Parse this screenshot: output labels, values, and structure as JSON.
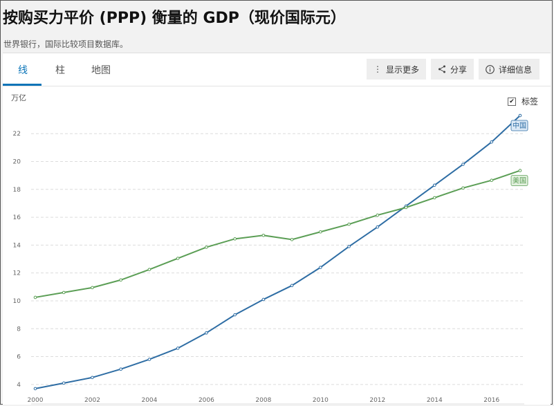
{
  "header": {
    "title": "按购买力平价 (PPP) 衡量的 GDP（现价国际元）",
    "subtitle": "世界银行，国际比较项目数据库。"
  },
  "tabs": [
    {
      "label": "线",
      "active": true
    },
    {
      "label": "柱",
      "active": false
    },
    {
      "label": "地图",
      "active": false
    }
  ],
  "toolbar": {
    "more_label": "显示更多",
    "share_label": "分享",
    "details_label": "详细信息"
  },
  "chart_ui": {
    "labels_toggle": "标签",
    "labels_checked": true
  },
  "colors": {
    "china": "#2e6da4",
    "usa": "#5b9e55",
    "active_tab": "#0a74b8"
  },
  "chart_data": {
    "type": "line",
    "ylabel": "万亿",
    "x": [
      2000,
      2001,
      2002,
      2003,
      2004,
      2005,
      2006,
      2007,
      2008,
      2009,
      2010,
      2011,
      2012,
      2013,
      2014,
      2015,
      2016,
      2017
    ],
    "xticks": [
      2000,
      2002,
      2004,
      2006,
      2008,
      2010,
      2012,
      2014,
      2016
    ],
    "yticks": [
      4,
      6,
      8,
      10,
      12,
      14,
      16,
      18,
      20,
      22
    ],
    "xlim": [
      2000,
      2017
    ],
    "ylim": [
      3,
      23.5
    ],
    "grid": true,
    "series": [
      {
        "name": "中国",
        "values": [
          3.7,
          4.1,
          4.5,
          5.1,
          5.8,
          6.6,
          7.7,
          9.0,
          10.1,
          11.1,
          12.4,
          13.9,
          15.3,
          16.8,
          18.3,
          19.8,
          21.4,
          23.3
        ]
      },
      {
        "name": "美国",
        "values": [
          10.25,
          10.6,
          10.95,
          11.5,
          12.25,
          13.05,
          13.85,
          14.45,
          14.7,
          14.4,
          14.95,
          15.5,
          16.15,
          16.7,
          17.4,
          18.1,
          18.65,
          19.35
        ]
      }
    ]
  }
}
